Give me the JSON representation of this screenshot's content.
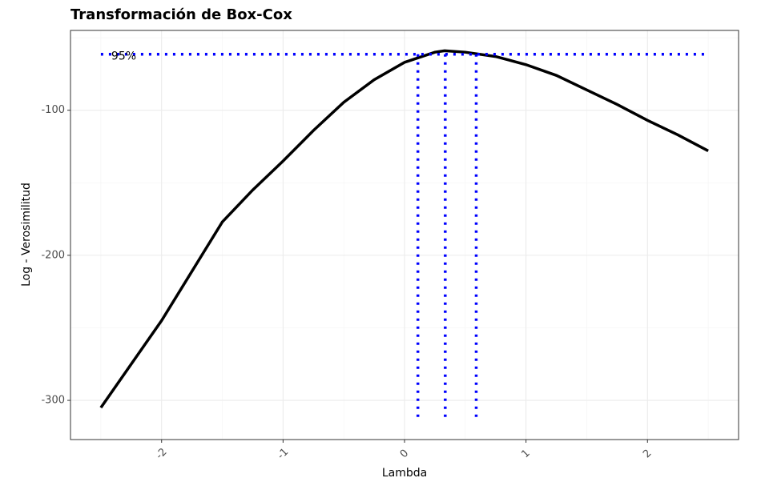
{
  "chart_data": {
    "type": "line",
    "title": "Transformación de Box-Cox",
    "x_label": "Lambda",
    "y_label": "Log - Verosimilitud",
    "x": [
      -2.5,
      -2.25,
      -2,
      -1.75,
      -1.5,
      -1.25,
      -1,
      -0.75,
      -0.5,
      -0.25,
      0,
      0.25,
      0.33,
      0.5,
      0.75,
      1,
      1.25,
      1.5,
      1.75,
      2,
      2.25,
      2.5
    ],
    "values": [
      -305,
      -275,
      -245,
      -211,
      -177,
      -155,
      -135,
      -114,
      -94.5,
      -79,
      -67,
      -60,
      -59,
      -60,
      -63,
      -68.6,
      -76,
      -86,
      -96,
      -107,
      -117,
      -128
    ],
    "color": "#000000",
    "ci_level": -61.4,
    "ci_lambdas": [
      0.11,
      0.335,
      0.59
    ],
    "ci_label": "95%",
    "ci_color": "#0000ff",
    "xlim": [
      -2.75,
      2.75
    ],
    "ylim": [
      -327,
      -45
    ],
    "xticks": [
      -2,
      -1,
      0,
      1,
      2
    ],
    "yticks": [
      -300,
      -200,
      -100
    ],
    "grid": true
  }
}
